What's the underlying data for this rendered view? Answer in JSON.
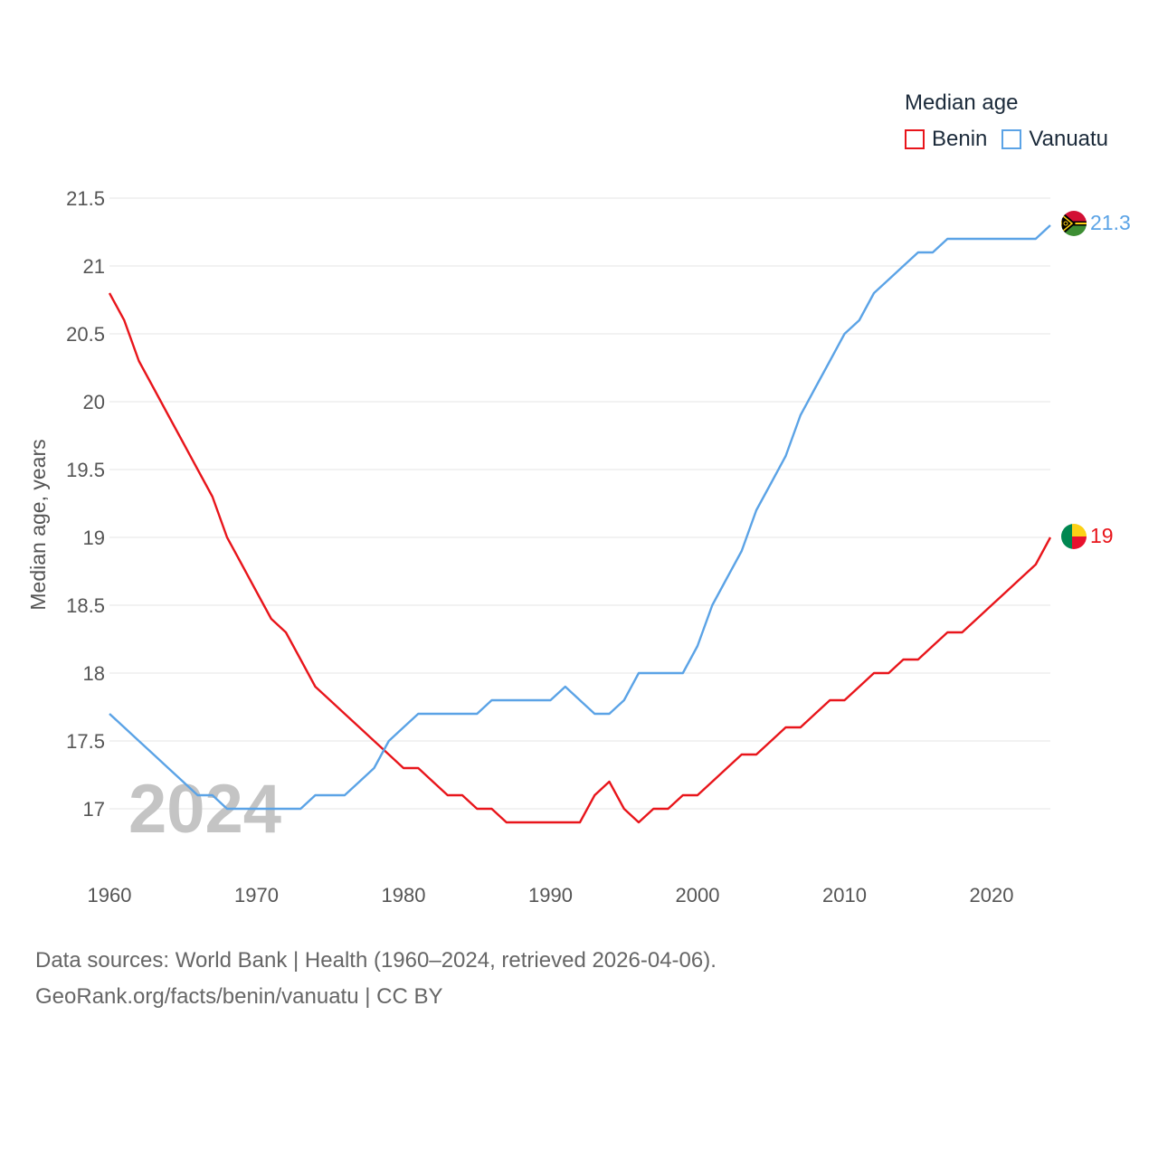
{
  "legend": {
    "title": "Median age",
    "items": [
      {
        "label": "Benin",
        "color": "#e8151b"
      },
      {
        "label": "Vanuatu",
        "color": "#5ba3e6"
      }
    ]
  },
  "watermark_year": "2024",
  "sources": {
    "line1": "Data sources: World Bank | Health (1960–2024, retrieved 2026-04-06).",
    "line2": "GeoRank.org/facts/benin/vanuatu | CC BY"
  },
  "chart_data": {
    "type": "line",
    "ylabel": "Median age, years",
    "xlabel": "",
    "xlim": [
      1960,
      2024
    ],
    "ylim": [
      16.75,
      21.5
    ],
    "yticks": [
      17,
      17.5,
      18,
      18.5,
      19,
      19.5,
      20,
      20.5,
      21,
      21.5
    ],
    "ytick_labels": [
      "17",
      "17.5",
      "18",
      "18.5",
      "19",
      "19.5",
      "20",
      "20.5",
      "21",
      "21.5"
    ],
    "xticks": [
      1960,
      1970,
      1980,
      1990,
      2000,
      2010,
      2020
    ],
    "xtick_labels": [
      "1960",
      "1970",
      "1980",
      "1990",
      "2000",
      "2010",
      "2020"
    ],
    "x": [
      1960,
      1961,
      1962,
      1963,
      1964,
      1965,
      1966,
      1967,
      1968,
      1969,
      1970,
      1971,
      1972,
      1973,
      1974,
      1975,
      1976,
      1977,
      1978,
      1979,
      1980,
      1981,
      1982,
      1983,
      1984,
      1985,
      1986,
      1987,
      1988,
      1989,
      1990,
      1991,
      1992,
      1993,
      1994,
      1995,
      1996,
      1997,
      1998,
      1999,
      2000,
      2001,
      2002,
      2003,
      2004,
      2005,
      2006,
      2007,
      2008,
      2009,
      2010,
      2011,
      2012,
      2013,
      2014,
      2015,
      2016,
      2017,
      2018,
      2019,
      2020,
      2021,
      2022,
      2023,
      2024
    ],
    "series": [
      {
        "name": "Benin",
        "color": "#e8151b",
        "end_label": "19",
        "values": [
          20.8,
          20.6,
          20.3,
          20.1,
          19.9,
          19.7,
          19.5,
          19.3,
          19.0,
          18.8,
          18.6,
          18.4,
          18.3,
          18.1,
          17.9,
          17.8,
          17.7,
          17.6,
          17.5,
          17.4,
          17.3,
          17.3,
          17.2,
          17.1,
          17.1,
          17.0,
          17.0,
          16.9,
          16.9,
          16.9,
          16.9,
          16.9,
          16.9,
          17.1,
          17.2,
          17.0,
          16.9,
          17.0,
          17.0,
          17.1,
          17.1,
          17.2,
          17.3,
          17.4,
          17.4,
          17.5,
          17.6,
          17.6,
          17.7,
          17.8,
          17.8,
          17.9,
          18.0,
          18.0,
          18.1,
          18.1,
          18.2,
          18.3,
          18.3,
          18.4,
          18.5,
          18.6,
          18.7,
          18.8,
          19.0
        ]
      },
      {
        "name": "Vanuatu",
        "color": "#5ba3e6",
        "end_label": "21.3",
        "values": [
          17.7,
          17.6,
          17.5,
          17.4,
          17.3,
          17.2,
          17.1,
          17.1,
          17.0,
          17.0,
          17.0,
          17.0,
          17.0,
          17.0,
          17.1,
          17.1,
          17.1,
          17.2,
          17.3,
          17.5,
          17.6,
          17.7,
          17.7,
          17.7,
          17.7,
          17.7,
          17.8,
          17.8,
          17.8,
          17.8,
          17.8,
          17.9,
          17.8,
          17.7,
          17.7,
          17.8,
          18.0,
          18.0,
          18.0,
          18.0,
          18.2,
          18.5,
          18.7,
          18.9,
          19.2,
          19.4,
          19.6,
          19.9,
          20.1,
          20.3,
          20.5,
          20.6,
          20.8,
          20.9,
          21.0,
          21.1,
          21.1,
          21.2,
          21.2,
          21.2,
          21.2,
          21.2,
          21.2,
          21.2,
          21.3
        ]
      }
    ]
  }
}
